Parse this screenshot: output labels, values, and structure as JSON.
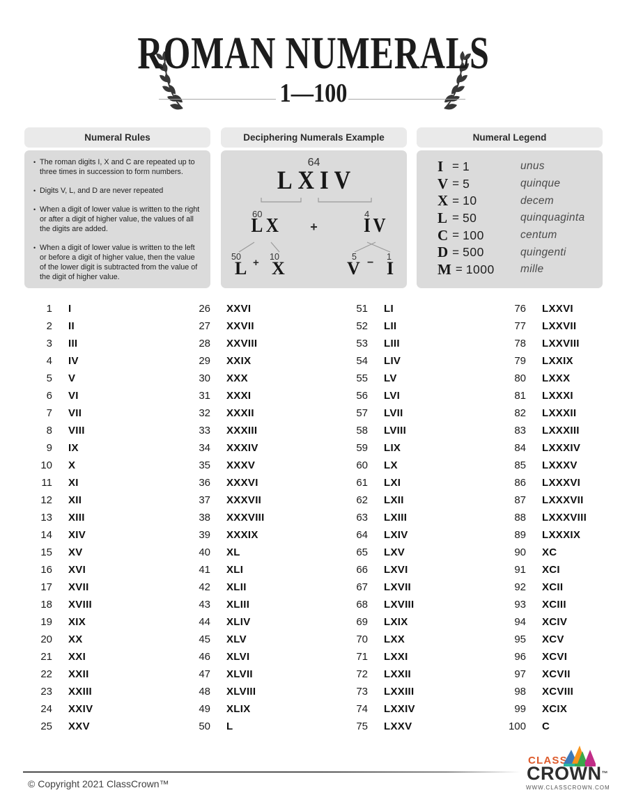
{
  "header": {
    "title": "ROMAN NUMERALS",
    "subtitle": "1—100"
  },
  "rules_box": {
    "header": "Numeral Rules",
    "bullet": "•",
    "rules": [
      "The roman digits I, X and C are repeated up to three times in succession to form numbers.",
      "Digits V, L, and D are never repeated",
      "When a digit of lower value is written to the right or after a digit of higher value, the values of all the digits are added.",
      "When a digit of lower value is written to the left or before a digit of higher value, then the value of the lower digit is subtracted from the value of the digit of higher value."
    ]
  },
  "example_box": {
    "header": "Deciphering Numerals Example",
    "total": {
      "value": "64",
      "numeral": "LXIV"
    },
    "tens": {
      "value": "60",
      "numeral": "LX",
      "operator": "+"
    },
    "ones": {
      "value": "4",
      "numeral": "IV"
    },
    "tens_parts": {
      "value1": "50",
      "numeral1": "L",
      "operator": "+",
      "value2": "10",
      "numeral2": "X"
    },
    "ones_parts": {
      "value1": "5",
      "numeral1": "V",
      "operator": "−",
      "value2": "1",
      "numeral2": "I"
    }
  },
  "legend_box": {
    "header": "Numeral Legend",
    "equals_sign": "=",
    "entries": [
      {
        "numeral": "I",
        "value": "1",
        "latin": "unus"
      },
      {
        "numeral": "V",
        "value": "5",
        "latin": "quinque"
      },
      {
        "numeral": "X",
        "value": "10",
        "latin": "decem"
      },
      {
        "numeral": "L",
        "value": "50",
        "latin": "quinquaginta"
      },
      {
        "numeral": "C",
        "value": "100",
        "latin": "centum"
      },
      {
        "numeral": "D",
        "value": "500",
        "latin": "quingenti"
      },
      {
        "numeral": "M",
        "value": "1000",
        "latin": "mille"
      }
    ]
  },
  "table": {
    "columns": [
      [
        [
          "1",
          "I"
        ],
        [
          "2",
          "II"
        ],
        [
          "3",
          "III"
        ],
        [
          "4",
          "IV"
        ],
        [
          "5",
          "V"
        ],
        [
          "6",
          "VI"
        ],
        [
          "7",
          "VII"
        ],
        [
          "8",
          "VIII"
        ],
        [
          "9",
          "IX"
        ],
        [
          "10",
          "X"
        ],
        [
          "11",
          "XI"
        ],
        [
          "12",
          "XII"
        ],
        [
          "13",
          "XIII"
        ],
        [
          "14",
          "XIV"
        ],
        [
          "15",
          "XV"
        ],
        [
          "16",
          "XVI"
        ],
        [
          "17",
          "XVII"
        ],
        [
          "18",
          "XVIII"
        ],
        [
          "19",
          "XIX"
        ],
        [
          "20",
          "XX"
        ],
        [
          "21",
          "XXI"
        ],
        [
          "22",
          "XXII"
        ],
        [
          "23",
          "XXIII"
        ],
        [
          "24",
          "XXIV"
        ],
        [
          "25",
          "XXV"
        ]
      ],
      [
        [
          "26",
          "XXVI"
        ],
        [
          "27",
          "XXVII"
        ],
        [
          "28",
          "XXVIII"
        ],
        [
          "29",
          "XXIX"
        ],
        [
          "30",
          "XXX"
        ],
        [
          "31",
          "XXXI"
        ],
        [
          "32",
          "XXXII"
        ],
        [
          "33",
          "XXXIII"
        ],
        [
          "34",
          "XXXIV"
        ],
        [
          "35",
          "XXXV"
        ],
        [
          "36",
          "XXXVI"
        ],
        [
          "37",
          "XXXVII"
        ],
        [
          "38",
          "XXXVIII"
        ],
        [
          "39",
          "XXXIX"
        ],
        [
          "40",
          "XL"
        ],
        [
          "41",
          "XLI"
        ],
        [
          "42",
          "XLII"
        ],
        [
          "43",
          "XLIII"
        ],
        [
          "44",
          "XLIV"
        ],
        [
          "45",
          "XLV"
        ],
        [
          "46",
          "XLVI"
        ],
        [
          "47",
          "XLVII"
        ],
        [
          "48",
          "XLVIII"
        ],
        [
          "49",
          "XLIX"
        ],
        [
          "50",
          "L"
        ]
      ],
      [
        [
          "51",
          "LI"
        ],
        [
          "52",
          "LII"
        ],
        [
          "53",
          "LIII"
        ],
        [
          "54",
          "LIV"
        ],
        [
          "55",
          "LV"
        ],
        [
          "56",
          "LVI"
        ],
        [
          "57",
          "LVII"
        ],
        [
          "58",
          "LVIII"
        ],
        [
          "59",
          "LIX"
        ],
        [
          "60",
          "LX"
        ],
        [
          "61",
          "LXI"
        ],
        [
          "62",
          "LXII"
        ],
        [
          "63",
          "LXIII"
        ],
        [
          "64",
          "LXIV"
        ],
        [
          "65",
          "LXV"
        ],
        [
          "66",
          "LXVI"
        ],
        [
          "67",
          "LXVII"
        ],
        [
          "68",
          "LXVIII"
        ],
        [
          "69",
          "LXIX"
        ],
        [
          "70",
          "LXX"
        ],
        [
          "71",
          "LXXI"
        ],
        [
          "72",
          "LXXII"
        ],
        [
          "73",
          "LXXIII"
        ],
        [
          "74",
          "LXXIV"
        ],
        [
          "75",
          "LXXV"
        ]
      ],
      [
        [
          "76",
          "LXXVI"
        ],
        [
          "77",
          "LXXVII"
        ],
        [
          "78",
          "LXXVIII"
        ],
        [
          "79",
          "LXXIX"
        ],
        [
          "80",
          "LXXX"
        ],
        [
          "81",
          "LXXXI"
        ],
        [
          "82",
          "LXXXII"
        ],
        [
          "83",
          "LXXXIII"
        ],
        [
          "84",
          "LXXXIV"
        ],
        [
          "85",
          "LXXXV"
        ],
        [
          "86",
          "LXXXVI"
        ],
        [
          "87",
          "LXXXVII"
        ],
        [
          "88",
          "LXXXVIII"
        ],
        [
          "89",
          "LXXXIX"
        ],
        [
          "90",
          "XC"
        ],
        [
          "91",
          "XCI"
        ],
        [
          "92",
          "XCII"
        ],
        [
          "93",
          "XCIII"
        ],
        [
          "94",
          "XCIV"
        ],
        [
          "95",
          "XCV"
        ],
        [
          "96",
          "XCVI"
        ],
        [
          "97",
          "XCVII"
        ],
        [
          "98",
          "XCVIII"
        ],
        [
          "99",
          "XCIX"
        ],
        [
          "100",
          "C"
        ]
      ]
    ]
  },
  "footer": {
    "copyright": "© Copyright 2021 ClassCrown™",
    "logo": {
      "line1": "CLASS",
      "line2": "CROWN",
      "trademark": "™",
      "website": "WWW.CLASSCROWN.COM"
    }
  },
  "colors": {
    "box_header_gray": "#EAEAEA",
    "box_body_gray": "#DBDBDB",
    "text_dark": "#1D1D1D",
    "logo_orange": "#DD5A2B",
    "crown_blue": "#3B79BA",
    "crown_orange": "#F7941D",
    "crown_green": "#3AA74A",
    "crown_magenta": "#C12D87",
    "crown_teal": "#2AB5A0"
  }
}
